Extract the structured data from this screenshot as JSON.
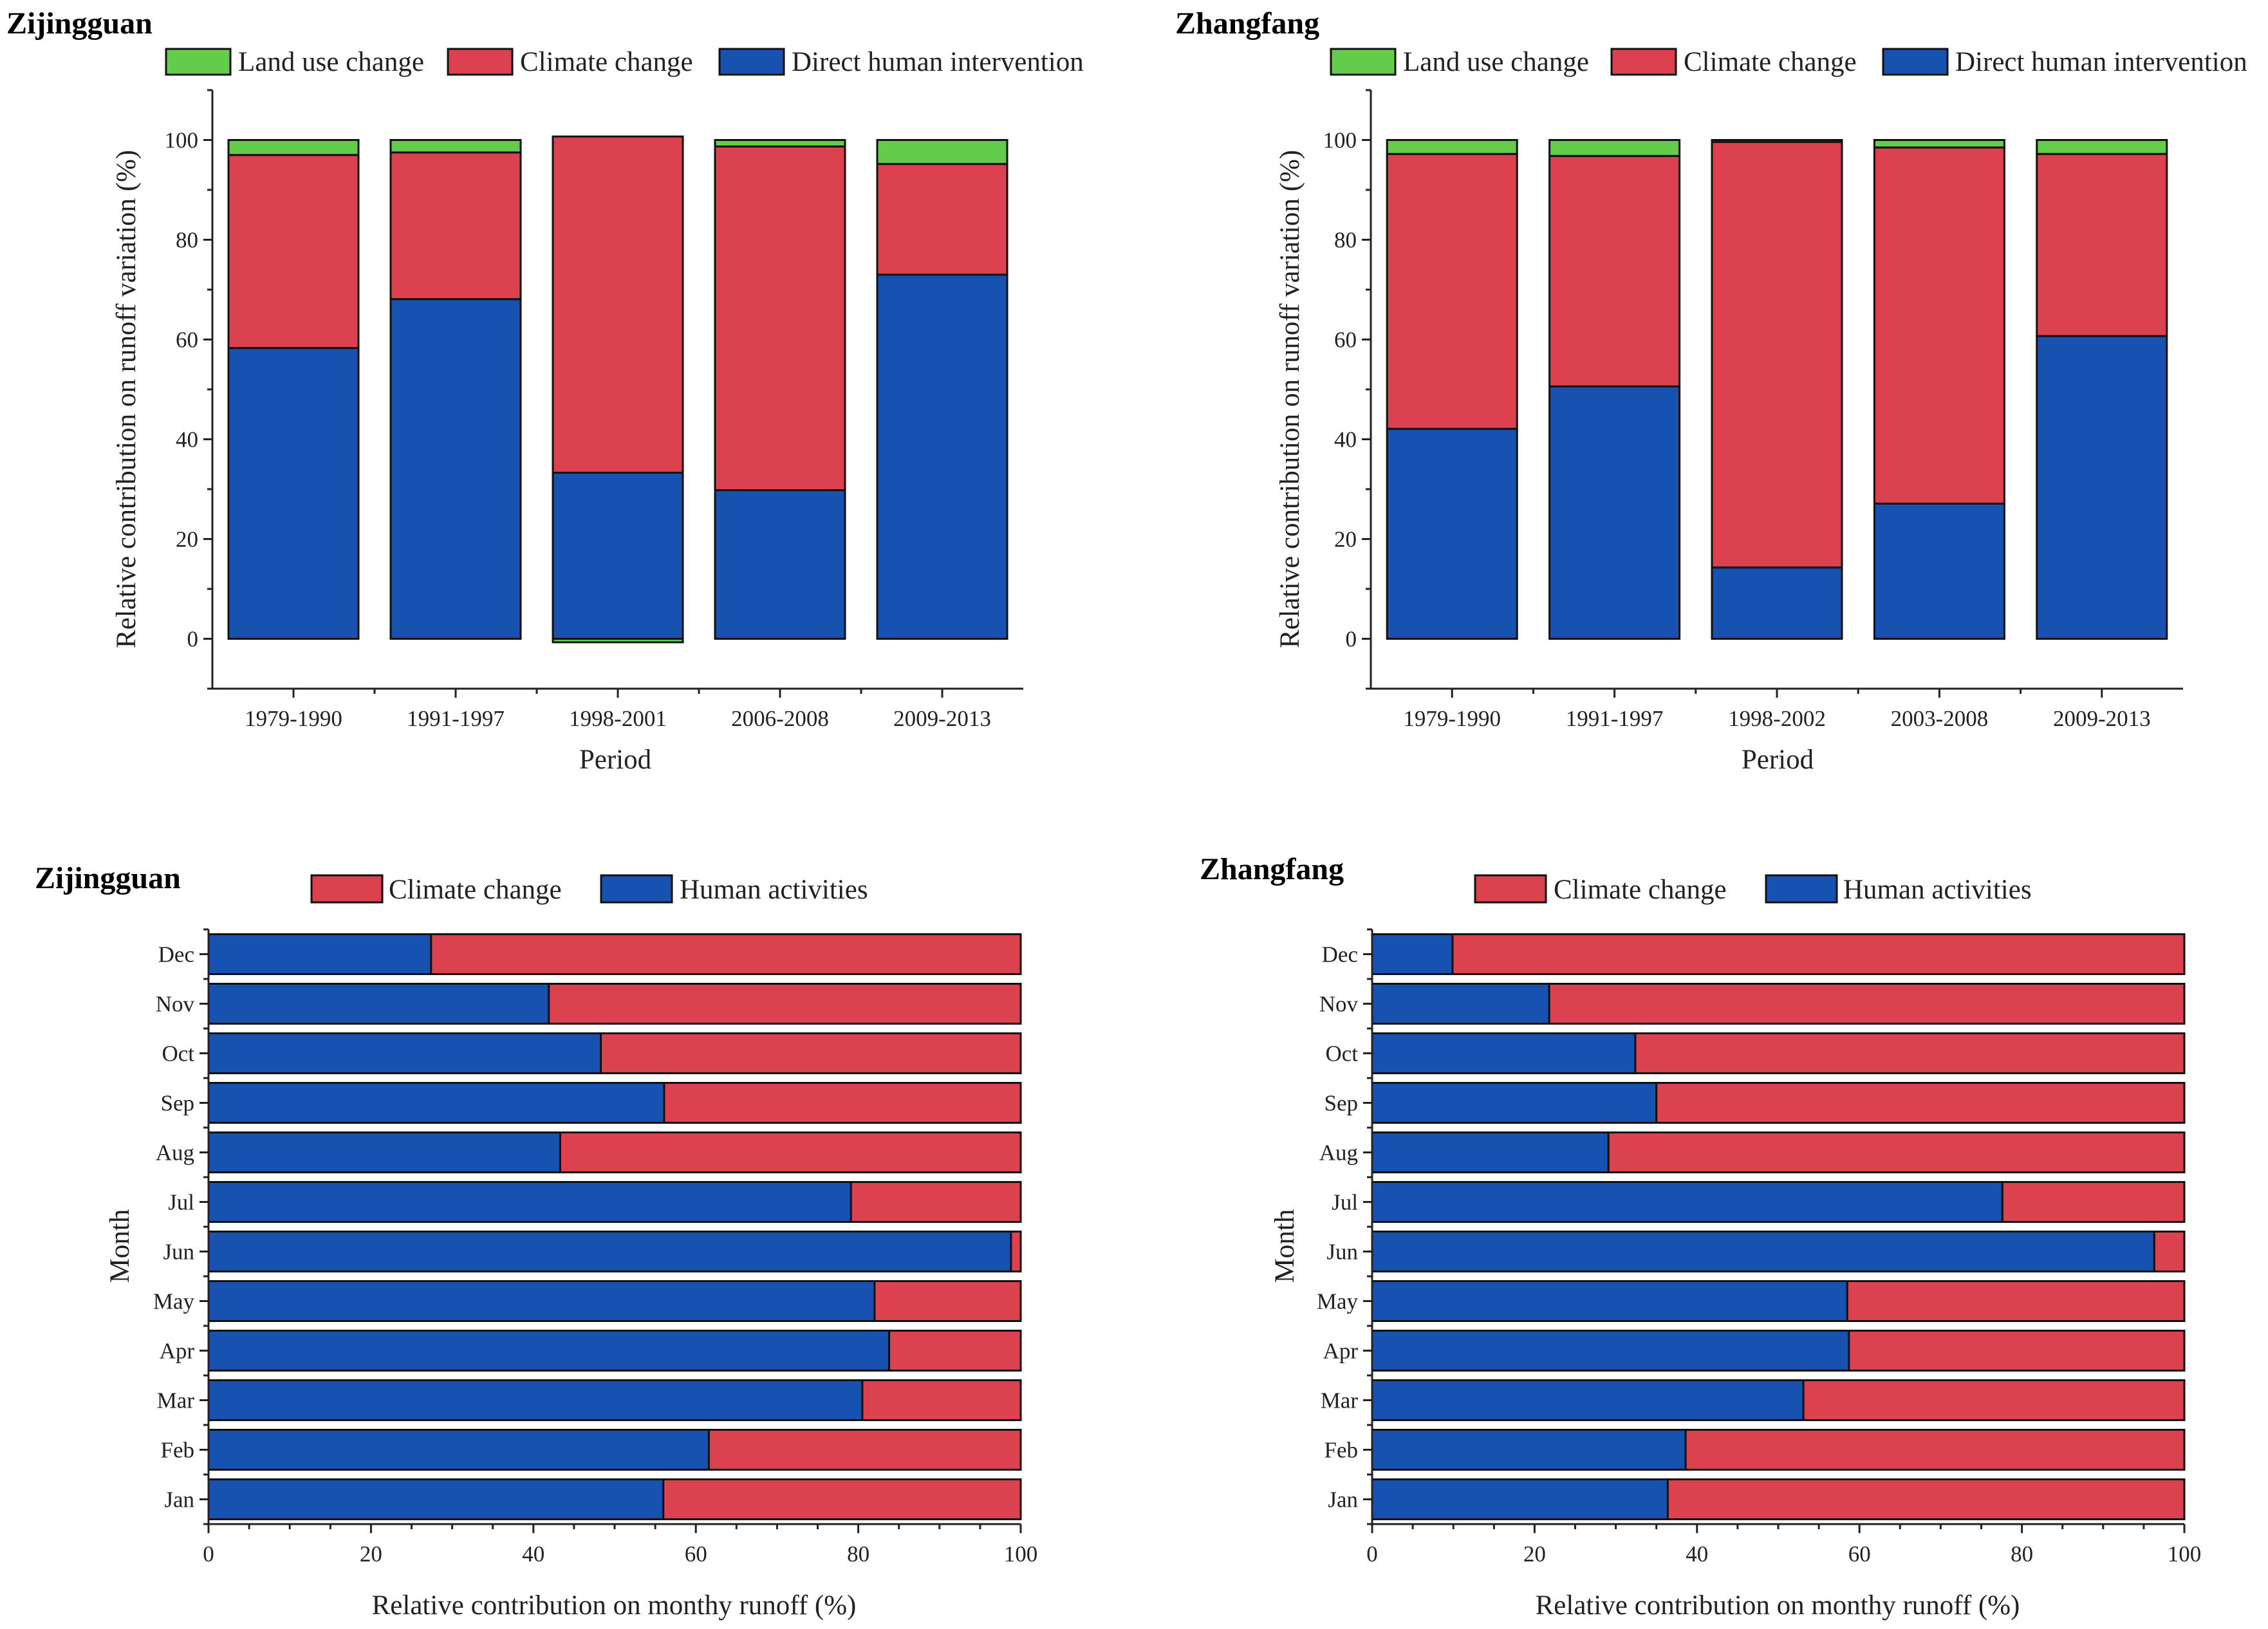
{
  "colors": {
    "land_use": "#63cc4a",
    "climate": "#dc4150",
    "human": "#1752b0",
    "axis": "#222222"
  },
  "chart_data": [
    {
      "type": "bar",
      "orientation": "vertical",
      "stacked": true,
      "title": "Zijingguan",
      "xlabel": "Period",
      "ylabel": "Relative contribution on runoff variation (%)",
      "ylim": [
        -10,
        110
      ],
      "yticks": [
        0,
        20,
        40,
        60,
        80,
        100
      ],
      "legend_position": "top",
      "categories": [
        "1979-1990",
        "1991-1997",
        "1998-2001",
        "2006-2008",
        "2009-2013"
      ],
      "series": [
        {
          "name": "Land use change",
          "color_key": "land_use",
          "values": [
            3.0,
            2.5,
            -0.7,
            1.3,
            4.8
          ]
        },
        {
          "name": "Climate change",
          "color_key": "climate",
          "values": [
            38.7,
            29.4,
            67.4,
            68.9,
            22.2
          ]
        },
        {
          "name": "Direct human intervention",
          "color_key": "human",
          "values": [
            58.3,
            68.1,
            33.3,
            29.8,
            73.0
          ]
        }
      ]
    },
    {
      "type": "bar",
      "orientation": "vertical",
      "stacked": true,
      "title": "Zhangfang",
      "xlabel": "Period",
      "ylabel": "Relative contribution on runoff variation (%)",
      "ylim": [
        -10,
        110
      ],
      "yticks": [
        0,
        20,
        40,
        60,
        80,
        100
      ],
      "legend_position": "top",
      "categories": [
        "1979-1990",
        "1991-1997",
        "1998-2002",
        "2003-2008",
        "2009-2013"
      ],
      "series": [
        {
          "name": "Land use change",
          "color_key": "land_use",
          "values": [
            2.8,
            3.2,
            0.4,
            1.5,
            2.8
          ]
        },
        {
          "name": "Climate change",
          "color_key": "climate",
          "values": [
            55.1,
            46.2,
            85.3,
            71.4,
            36.5
          ]
        },
        {
          "name": "Direct human intervention",
          "color_key": "human",
          "values": [
            42.1,
            50.6,
            14.3,
            27.1,
            60.7
          ]
        }
      ]
    },
    {
      "type": "bar",
      "orientation": "horizontal",
      "stacked": true,
      "title": "Zijingguan",
      "xlabel": "Relative contribution on monthy runoff (%)",
      "ylabel": "Month",
      "xlim": [
        0,
        100
      ],
      "xticks": [
        0,
        20,
        40,
        60,
        80,
        100
      ],
      "legend_position": "top",
      "categories": [
        "Dec",
        "Nov",
        "Oct",
        "Sep",
        "Aug",
        "Jul",
        "Jun",
        "May",
        "Apr",
        "Mar",
        "Feb",
        "Jan"
      ],
      "series": [
        {
          "name": "Human activities",
          "color_key": "human",
          "values": [
            27.4,
            41.9,
            48.3,
            56.1,
            43.3,
            79.1,
            98.8,
            82.0,
            83.8,
            80.5,
            61.6,
            56.0
          ]
        },
        {
          "name": "Climate change",
          "color_key": "climate",
          "values": [
            72.6,
            58.1,
            51.7,
            43.9,
            56.7,
            20.9,
            1.2,
            18.0,
            16.2,
            19.5,
            38.4,
            44.0
          ]
        }
      ]
    },
    {
      "type": "bar",
      "orientation": "horizontal",
      "stacked": true,
      "title": "Zhangfang",
      "xlabel": "Relative contribution on monthy runoff (%)",
      "ylabel": "Month",
      "xlim": [
        0,
        100
      ],
      "xticks": [
        0,
        20,
        40,
        60,
        80,
        100
      ],
      "legend_position": "top",
      "categories": [
        "Dec",
        "Nov",
        "Oct",
        "Sep",
        "Aug",
        "Jul",
        "Jun",
        "May",
        "Apr",
        "Mar",
        "Feb",
        "Jan"
      ],
      "series": [
        {
          "name": "Human activities",
          "color_key": "human",
          "values": [
            9.9,
            21.8,
            32.4,
            35.0,
            29.1,
            77.6,
            96.3,
            58.5,
            58.7,
            53.1,
            38.6,
            36.4
          ]
        },
        {
          "name": "Climate change",
          "color_key": "climate",
          "values": [
            90.1,
            78.2,
            67.6,
            65.0,
            70.9,
            22.4,
            3.7,
            41.5,
            41.3,
            46.9,
            61.4,
            63.6
          ]
        }
      ]
    }
  ]
}
